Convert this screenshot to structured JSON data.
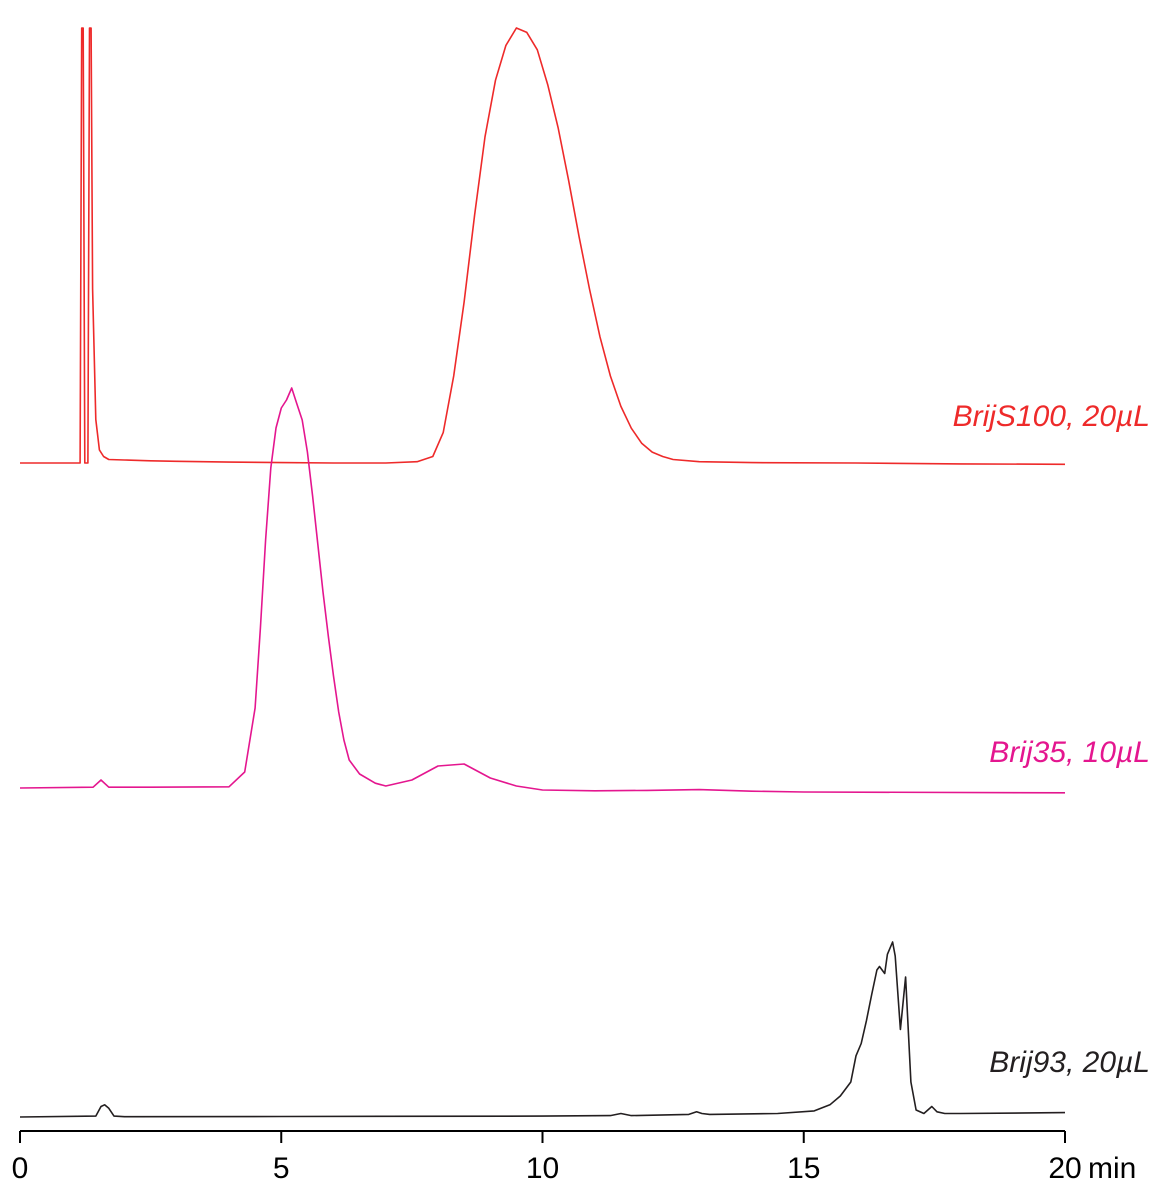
{
  "chart_data": {
    "type": "line",
    "xlabel": "min",
    "xlim": [
      0,
      20
    ],
    "x_ticks": [
      0,
      5,
      10,
      15,
      20
    ],
    "x_tick_labels": [
      "0",
      "5",
      "10",
      "15",
      "20"
    ],
    "y_axis_shown": false,
    "grid": false,
    "series": [
      {
        "name": "BrijS100, 20µL",
        "color": "#ee2a2a",
        "x": [
          0,
          1.15,
          1.18,
          1.21,
          1.24,
          1.3,
          1.33,
          1.36,
          1.39,
          1.45,
          1.52,
          1.6,
          1.7,
          2.0,
          2.5,
          3.0,
          4.0,
          5.0,
          6.0,
          7.0,
          7.6,
          7.9,
          8.1,
          8.3,
          8.5,
          8.7,
          8.9,
          9.1,
          9.3,
          9.5,
          9.7,
          9.9,
          10.1,
          10.3,
          10.5,
          10.7,
          10.9,
          11.1,
          11.3,
          11.5,
          11.7,
          11.9,
          12.1,
          12.3,
          12.5,
          13.0,
          14.0,
          16.0,
          18.0,
          20.0
        ],
        "y": [
          0,
          0,
          100,
          100,
          0,
          0,
          100,
          100,
          40,
          10,
          3,
          1.5,
          0.8,
          0.7,
          0.5,
          0.4,
          0.2,
          0.1,
          0,
          0,
          0.3,
          1.5,
          7,
          20,
          37,
          57,
          75,
          88,
          96,
          100,
          99,
          95,
          87,
          77,
          65,
          52,
          40,
          29,
          20,
          13,
          8,
          4.5,
          2.5,
          1.5,
          0.8,
          0.3,
          0.1,
          0,
          -0.2,
          -0.3
        ]
      },
      {
        "name": "Brij35, 10µL",
        "color": "#e4168f",
        "x": [
          0,
          1.4,
          1.55,
          1.7,
          2.5,
          4.0,
          4.3,
          4.5,
          4.6,
          4.7,
          4.8,
          4.9,
          5.0,
          5.1,
          5.2,
          5.3,
          5.4,
          5.5,
          5.6,
          5.7,
          5.8,
          5.9,
          6.0,
          6.1,
          6.2,
          6.3,
          6.5,
          6.8,
          7.0,
          7.5,
          8.0,
          8.5,
          9.0,
          9.5,
          10.0,
          11.0,
          12.0,
          13.0,
          14.0,
          15.0,
          20.0
        ],
        "y": [
          0,
          0.2,
          2,
          0.2,
          0.2,
          0.3,
          4,
          20,
          40,
          62,
          80,
          90,
          95,
          97,
          100,
          96,
          92,
          84,
          73,
          61,
          49,
          38,
          28,
          19,
          12,
          7,
          3.5,
          1.2,
          0.5,
          2,
          5.5,
          6,
          2.5,
          0.5,
          -0.5,
          -0.7,
          -0.6,
          -0.4,
          -0.8,
          -1.0,
          -1.2
        ]
      },
      {
        "name": "Brij93, 20µL",
        "color": "#231f20",
        "x": [
          0,
          1.45,
          1.55,
          1.62,
          1.7,
          1.8,
          2.0,
          5.0,
          10.0,
          11.3,
          11.5,
          11.7,
          12.8,
          12.95,
          13.05,
          13.2,
          14.5,
          15.2,
          15.5,
          15.7,
          15.9,
          16.0,
          16.1,
          16.2,
          16.3,
          16.4,
          16.45,
          16.55,
          16.6,
          16.7,
          16.75,
          16.85,
          16.95,
          17.05,
          17.15,
          17.3,
          17.45,
          17.55,
          17.7,
          18.0,
          20.0
        ],
        "y": [
          0,
          0.5,
          6,
          7,
          5,
          0.5,
          0.2,
          0.3,
          0.5,
          0.8,
          2,
          0.8,
          1.5,
          3,
          2,
          1.5,
          2,
          3.5,
          7,
          12,
          20,
          35,
          42,
          55,
          70,
          84,
          86,
          82,
          93,
          100,
          92,
          50,
          80,
          20,
          4,
          2,
          6,
          3,
          2,
          2,
          2.5
        ]
      }
    ]
  }
}
